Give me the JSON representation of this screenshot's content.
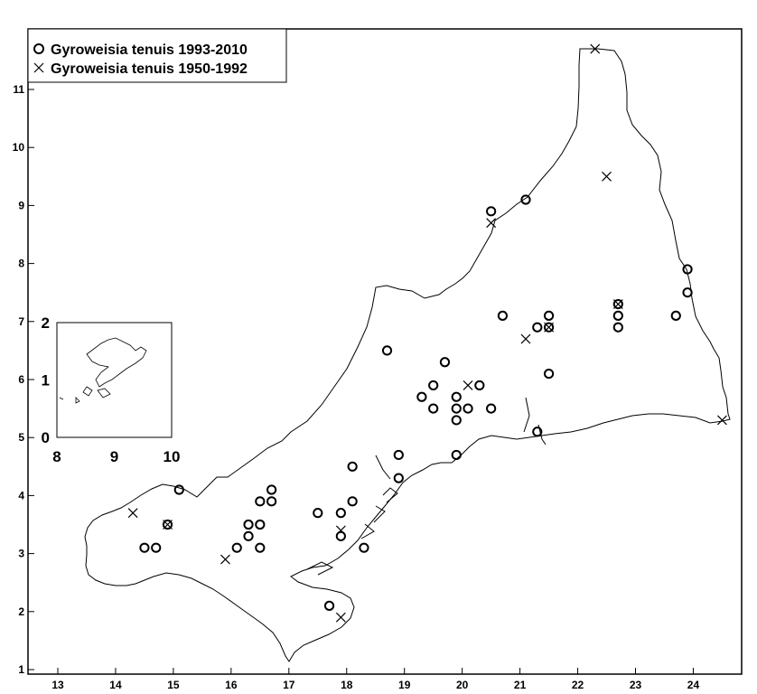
{
  "legend": {
    "recent_label": "Gyroweisia tenuis 1993-2010",
    "historic_label": "Gyroweisia tenuis 1950-1992"
  },
  "axes": {
    "x_ticks": [
      "13",
      "14",
      "15",
      "16",
      "17",
      "18",
      "19",
      "20",
      "21",
      "22",
      "23",
      "24"
    ],
    "y_ticks": [
      "1",
      "2",
      "3",
      "4",
      "5",
      "6",
      "7",
      "8",
      "9",
      "10",
      "11"
    ],
    "x_range": [
      12.55,
      24.75
    ],
    "y_range": [
      0.9,
      11.85
    ]
  },
  "inset": {
    "x_ticks": [
      "8",
      "9",
      "10"
    ],
    "y_ticks": [
      "0",
      "1",
      "2"
    ]
  },
  "chart_data": {
    "type": "scatter",
    "title": "",
    "xlabel": "",
    "ylabel": "",
    "xlim": [
      12.55,
      24.75
    ],
    "ylim": [
      0.9,
      11.85
    ],
    "series": [
      {
        "name": "Gyroweisia tenuis 1993-2010",
        "marker": "circle",
        "points": [
          [
            15.1,
            4.1
          ],
          [
            14.9,
            3.5
          ],
          [
            14.5,
            3.1
          ],
          [
            14.7,
            3.1
          ],
          [
            16.1,
            3.1
          ],
          [
            16.3,
            3.5
          ],
          [
            16.3,
            3.3
          ],
          [
            16.5,
            3.5
          ],
          [
            16.5,
            3.1
          ],
          [
            16.5,
            3.9
          ],
          [
            16.7,
            3.9
          ],
          [
            16.7,
            4.1
          ],
          [
            17.5,
            3.7
          ],
          [
            17.7,
            2.1
          ],
          [
            17.9,
            3.7
          ],
          [
            17.9,
            3.3
          ],
          [
            18.1,
            3.9
          ],
          [
            18.1,
            4.5
          ],
          [
            18.3,
            3.1
          ],
          [
            18.7,
            6.5
          ],
          [
            18.9,
            4.7
          ],
          [
            18.9,
            4.3
          ],
          [
            19.3,
            5.7
          ],
          [
            19.5,
            5.9
          ],
          [
            19.5,
            5.5
          ],
          [
            19.7,
            6.3
          ],
          [
            19.9,
            5.7
          ],
          [
            19.9,
            5.5
          ],
          [
            19.9,
            5.3
          ],
          [
            19.9,
            4.7
          ],
          [
            20.1,
            5.5
          ],
          [
            20.3,
            5.9
          ],
          [
            20.5,
            5.5
          ],
          [
            20.5,
            8.9
          ],
          [
            20.7,
            7.1
          ],
          [
            21.1,
            9.1
          ],
          [
            21.3,
            6.9
          ],
          [
            21.5,
            7.1
          ],
          [
            21.5,
            6.9
          ],
          [
            21.5,
            6.1
          ],
          [
            21.3,
            5.1
          ],
          [
            22.7,
            7.3
          ],
          [
            22.7,
            7.1
          ],
          [
            22.7,
            6.9
          ],
          [
            23.7,
            7.1
          ],
          [
            23.9,
            7.9
          ],
          [
            23.9,
            7.5
          ]
        ]
      },
      {
        "name": "Gyroweisia tenuis 1950-1992",
        "marker": "cross",
        "points": [
          [
            14.3,
            3.7
          ],
          [
            14.9,
            3.5
          ],
          [
            15.9,
            2.9
          ],
          [
            17.9,
            1.9
          ],
          [
            17.9,
            3.4
          ],
          [
            20.1,
            5.9
          ],
          [
            20.5,
            8.7
          ],
          [
            21.1,
            6.7
          ],
          [
            21.5,
            6.9
          ],
          [
            22.3,
            11.7
          ],
          [
            22.5,
            9.5
          ],
          [
            22.7,
            7.3
          ],
          [
            24.5,
            5.3
          ]
        ]
      }
    ]
  }
}
